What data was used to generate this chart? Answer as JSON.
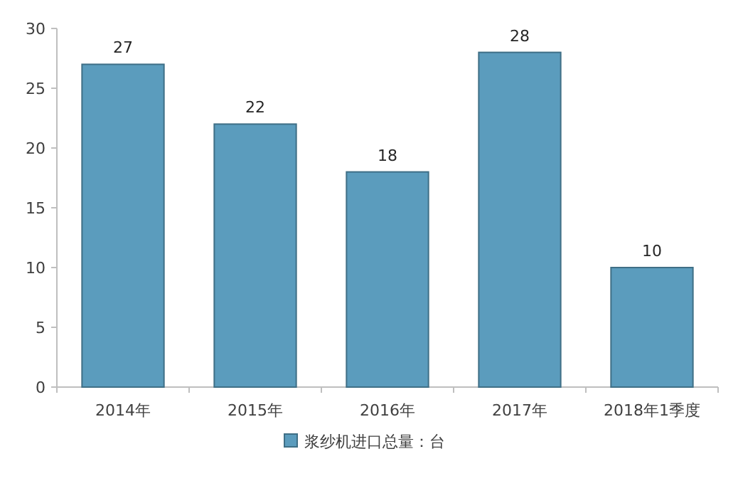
{
  "chart_data": {
    "type": "bar",
    "categories": [
      "2014年",
      "2015年",
      "2016年",
      "2017年",
      "2018年1季度"
    ],
    "series": [
      {
        "name": "浆纱机进口总量：台",
        "color": "#5b9cbd",
        "values": [
          27,
          22,
          18,
          28,
          10
        ]
      }
    ],
    "ylim": [
      0,
      30
    ],
    "yticks": [
      0,
      5,
      10,
      15,
      20,
      25,
      30
    ],
    "data_labels": true,
    "legend": "bottom"
  }
}
